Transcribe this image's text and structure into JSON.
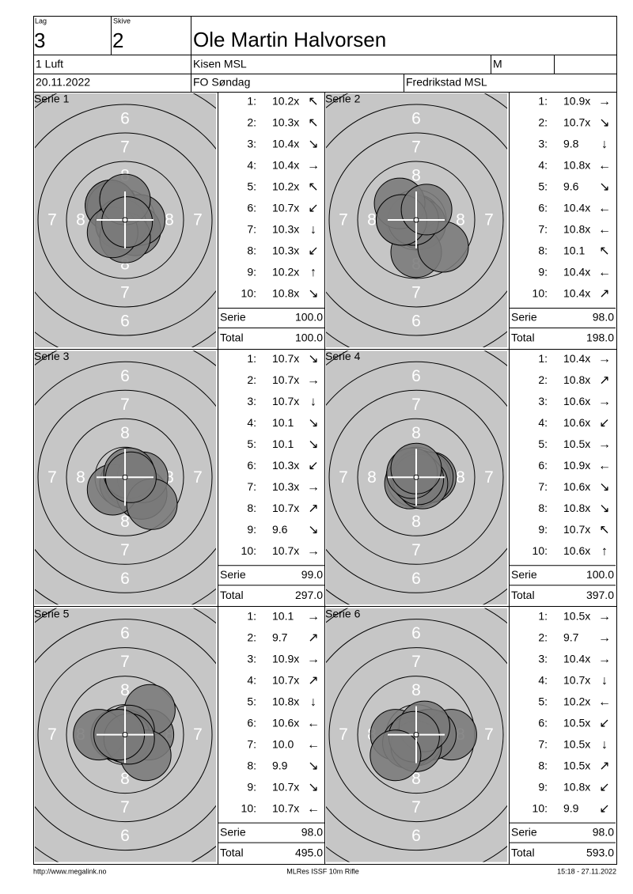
{
  "header": {
    "lag_label": "Lag",
    "lag": "3",
    "skive_label": "Skive",
    "skive": "2",
    "name": "Ole Martin Halvorsen",
    "class": "1 Luft",
    "club": "Kisen MSL",
    "gender": "M",
    "date": "20.11.2022",
    "event": "FO Søndag",
    "venue": "Fredrikstad MSL"
  },
  "target_rings": [
    "6",
    "7",
    "8"
  ],
  "series": [
    {
      "title": "Serie 1",
      "shots": [
        {
          "no": "1:",
          "score": "10.2x",
          "dir": "↖"
        },
        {
          "no": "2:",
          "score": "10.3x",
          "dir": "↖"
        },
        {
          "no": "3:",
          "score": "10.4x",
          "dir": "↘"
        },
        {
          "no": "4:",
          "score": "10.4x",
          "dir": "→"
        },
        {
          "no": "5:",
          "score": "10.2x",
          "dir": "↖"
        },
        {
          "no": "6:",
          "score": "10.7x",
          "dir": "↙"
        },
        {
          "no": "7:",
          "score": "10.3x",
          "dir": "↓"
        },
        {
          "no": "8:",
          "score": "10.3x",
          "dir": "↙"
        },
        {
          "no": "9:",
          "score": "10.2x",
          "dir": "↑"
        },
        {
          "no": "10:",
          "score": "10.8x",
          "dir": "↘"
        }
      ],
      "serie_label": "Serie",
      "serie": "100.0",
      "total_label": "Total",
      "total": "100.0"
    },
    {
      "title": "Serie 2",
      "shots": [
        {
          "no": "1:",
          "score": "10.9x",
          "dir": "→"
        },
        {
          "no": "2:",
          "score": "10.7x",
          "dir": "↘"
        },
        {
          "no": "3:",
          "score": "9.8",
          "dir": "↓"
        },
        {
          "no": "4:",
          "score": "10.8x",
          "dir": "←"
        },
        {
          "no": "5:",
          "score": "9.6",
          "dir": "↘"
        },
        {
          "no": "6:",
          "score": "10.4x",
          "dir": "←"
        },
        {
          "no": "7:",
          "score": "10.8x",
          "dir": "←"
        },
        {
          "no": "8:",
          "score": "10.1",
          "dir": "↖"
        },
        {
          "no": "9:",
          "score": "10.4x",
          "dir": "←"
        },
        {
          "no": "10:",
          "score": "10.4x",
          "dir": "↗"
        }
      ],
      "serie_label": "Serie",
      "serie": "98.0",
      "total_label": "Total",
      "total": "198.0"
    },
    {
      "title": "Serie 3",
      "shots": [
        {
          "no": "1:",
          "score": "10.7x",
          "dir": "↘"
        },
        {
          "no": "2:",
          "score": "10.7x",
          "dir": "→"
        },
        {
          "no": "3:",
          "score": "10.7x",
          "dir": "↓"
        },
        {
          "no": "4:",
          "score": "10.1",
          "dir": "↘"
        },
        {
          "no": "5:",
          "score": "10.1",
          "dir": "↘"
        },
        {
          "no": "6:",
          "score": "10.3x",
          "dir": "↙"
        },
        {
          "no": "7:",
          "score": "10.3x",
          "dir": "→"
        },
        {
          "no": "8:",
          "score": "10.7x",
          "dir": "↗"
        },
        {
          "no": "9:",
          "score": "9.6",
          "dir": "↘"
        },
        {
          "no": "10:",
          "score": "10.7x",
          "dir": "→"
        }
      ],
      "serie_label": "Serie",
      "serie": "99.0",
      "total_label": "Total",
      "total": "297.0"
    },
    {
      "title": "Serie 4",
      "shots": [
        {
          "no": "1:",
          "score": "10.4x",
          "dir": "→"
        },
        {
          "no": "2:",
          "score": "10.8x",
          "dir": "↗"
        },
        {
          "no": "3:",
          "score": "10.6x",
          "dir": "→"
        },
        {
          "no": "4:",
          "score": "10.6x",
          "dir": "↙"
        },
        {
          "no": "5:",
          "score": "10.5x",
          "dir": "→"
        },
        {
          "no": "6:",
          "score": "10.9x",
          "dir": "←"
        },
        {
          "no": "7:",
          "score": "10.6x",
          "dir": "↘"
        },
        {
          "no": "8:",
          "score": "10.8x",
          "dir": "↘"
        },
        {
          "no": "9:",
          "score": "10.7x",
          "dir": "↖"
        },
        {
          "no": "10:",
          "score": "10.6x",
          "dir": "↑"
        }
      ],
      "serie_label": "Serie",
      "serie": "100.0",
      "total_label": "Total",
      "total": "397.0"
    },
    {
      "title": "Serie 5",
      "shots": [
        {
          "no": "1:",
          "score": "10.1",
          "dir": "→"
        },
        {
          "no": "2:",
          "score": "9.7",
          "dir": "↗"
        },
        {
          "no": "3:",
          "score": "10.9x",
          "dir": "→"
        },
        {
          "no": "4:",
          "score": "10.7x",
          "dir": "↗"
        },
        {
          "no": "5:",
          "score": "10.8x",
          "dir": "↓"
        },
        {
          "no": "6:",
          "score": "10.6x",
          "dir": "←"
        },
        {
          "no": "7:",
          "score": "10.0",
          "dir": "←"
        },
        {
          "no": "8:",
          "score": "9.9",
          "dir": "↘"
        },
        {
          "no": "9:",
          "score": "10.7x",
          "dir": "↘"
        },
        {
          "no": "10:",
          "score": "10.7x",
          "dir": "←"
        }
      ],
      "serie_label": "Serie",
      "serie": "98.0",
      "total_label": "Total",
      "total": "495.0"
    },
    {
      "title": "Serie 6",
      "shots": [
        {
          "no": "1:",
          "score": "10.5x",
          "dir": "→"
        },
        {
          "no": "2:",
          "score": "9.7",
          "dir": "→"
        },
        {
          "no": "3:",
          "score": "10.4x",
          "dir": "→"
        },
        {
          "no": "4:",
          "score": "10.7x",
          "dir": "↓"
        },
        {
          "no": "5:",
          "score": "10.2x",
          "dir": "←"
        },
        {
          "no": "6:",
          "score": "10.5x",
          "dir": "↙"
        },
        {
          "no": "7:",
          "score": "10.5x",
          "dir": "↓"
        },
        {
          "no": "8:",
          "score": "10.5x",
          "dir": "↗"
        },
        {
          "no": "9:",
          "score": "10.8x",
          "dir": "↙"
        },
        {
          "no": "10:",
          "score": "9.9",
          "dir": "↙"
        }
      ],
      "serie_label": "Serie",
      "serie": "98.0",
      "total_label": "Total",
      "total": "593.0"
    }
  ],
  "footer": {
    "url": "http://www.megalink.no",
    "program": "MLRes ISSF 10m Rifle",
    "timestamp": "15:18 - 27.11.2022"
  }
}
